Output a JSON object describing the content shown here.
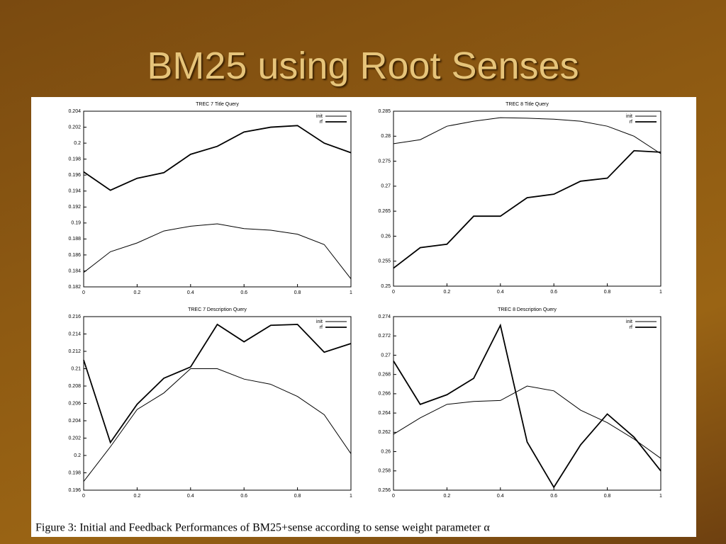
{
  "title": "BM25 using Root Senses",
  "caption": "Figure 3: Initial and Feedback Performances of BM25+sense according to sense weight parameter α",
  "chart_data": [
    {
      "type": "line",
      "title": "TREC 7 Title Query",
      "legend": "upper right",
      "x": [
        0,
        0.1,
        0.2,
        0.3,
        0.4,
        0.5,
        0.6,
        0.7,
        0.8,
        0.9,
        1
      ],
      "xlim": [
        0,
        1
      ],
      "xticks": [
        0,
        0.2,
        0.4,
        0.6,
        0.8,
        1
      ],
      "ylim": [
        0.182,
        0.204
      ],
      "yticks": [
        0.182,
        0.184,
        0.186,
        0.188,
        0.19,
        0.192,
        0.194,
        0.196,
        0.198,
        0.2,
        0.202,
        0.204
      ],
      "series": [
        {
          "name": "init",
          "color": "#000000",
          "values": [
            0.1838,
            0.1864,
            0.1875,
            0.189,
            0.1896,
            0.1899,
            0.1893,
            0.1891,
            0.1886,
            0.1873,
            0.183
          ]
        },
        {
          "name": "rf",
          "color": "#000000",
          "values": [
            0.1964,
            0.1941,
            0.1956,
            0.1963,
            0.1986,
            0.1996,
            0.2014,
            0.202,
            0.2022,
            0.2,
            0.1988
          ]
        }
      ]
    },
    {
      "type": "line",
      "title": "TREC 8 Title Query",
      "legend": "upper right",
      "x": [
        0,
        0.1,
        0.2,
        0.3,
        0.4,
        0.5,
        0.6,
        0.7,
        0.8,
        0.9,
        1
      ],
      "xlim": [
        0,
        1
      ],
      "xticks": [
        0,
        0.2,
        0.4,
        0.6,
        0.8,
        1
      ],
      "ylim": [
        0.25,
        0.285
      ],
      "yticks": [
        0.25,
        0.255,
        0.26,
        0.265,
        0.27,
        0.275,
        0.28,
        0.285
      ],
      "series": [
        {
          "name": "init",
          "color": "#000000",
          "values": [
            0.2785,
            0.2793,
            0.282,
            0.283,
            0.2837,
            0.2836,
            0.2834,
            0.283,
            0.282,
            0.28,
            0.2765
          ]
        },
        {
          "name": "rf",
          "color": "#000000",
          "values": [
            0.2536,
            0.2577,
            0.2584,
            0.264,
            0.264,
            0.2677,
            0.2684,
            0.271,
            0.2716,
            0.2771,
            0.2768
          ]
        }
      ]
    },
    {
      "type": "line",
      "title": "TREC 7 Description Query",
      "legend": "upper right",
      "x": [
        0,
        0.1,
        0.2,
        0.3,
        0.4,
        0.5,
        0.6,
        0.7,
        0.8,
        0.9,
        1
      ],
      "xlim": [
        0,
        1
      ],
      "xticks": [
        0,
        0.2,
        0.4,
        0.6,
        0.8,
        1
      ],
      "ylim": [
        0.196,
        0.216
      ],
      "yticks": [
        0.196,
        0.198,
        0.2,
        0.202,
        0.204,
        0.206,
        0.208,
        0.21,
        0.212,
        0.214,
        0.216
      ],
      "series": [
        {
          "name": "init",
          "color": "#000000",
          "values": [
            0.197,
            0.201,
            0.2053,
            0.2072,
            0.21,
            0.21,
            0.2088,
            0.2082,
            0.2068,
            0.2047,
            0.2002
          ]
        },
        {
          "name": "rf",
          "color": "#000000",
          "values": [
            0.211,
            0.2015,
            0.2059,
            0.2089,
            0.2102,
            0.2151,
            0.2131,
            0.215,
            0.2151,
            0.2119,
            0.2129
          ]
        }
      ]
    },
    {
      "type": "line",
      "title": "TREC 8 Description Query",
      "legend": "upper right",
      "x": [
        0,
        0.1,
        0.2,
        0.3,
        0.4,
        0.5,
        0.6,
        0.7,
        0.8,
        0.9,
        1
      ],
      "xlim": [
        0,
        1
      ],
      "xticks": [
        0,
        0.2,
        0.4,
        0.6,
        0.8,
        1
      ],
      "ylim": [
        0.256,
        0.274
      ],
      "yticks": [
        0.256,
        0.258,
        0.26,
        0.262,
        0.264,
        0.266,
        0.268,
        0.27,
        0.272,
        0.274
      ],
      "series": [
        {
          "name": "init",
          "color": "#000000",
          "values": [
            0.2618,
            0.2635,
            0.2649,
            0.2652,
            0.2653,
            0.2668,
            0.2663,
            0.2643,
            0.263,
            0.2613,
            0.2593
          ]
        },
        {
          "name": "rf",
          "color": "#000000",
          "values": [
            0.2694,
            0.2649,
            0.2659,
            0.2676,
            0.2731,
            0.261,
            0.2563,
            0.2607,
            0.2639,
            0.2615,
            0.258
          ]
        }
      ]
    }
  ]
}
